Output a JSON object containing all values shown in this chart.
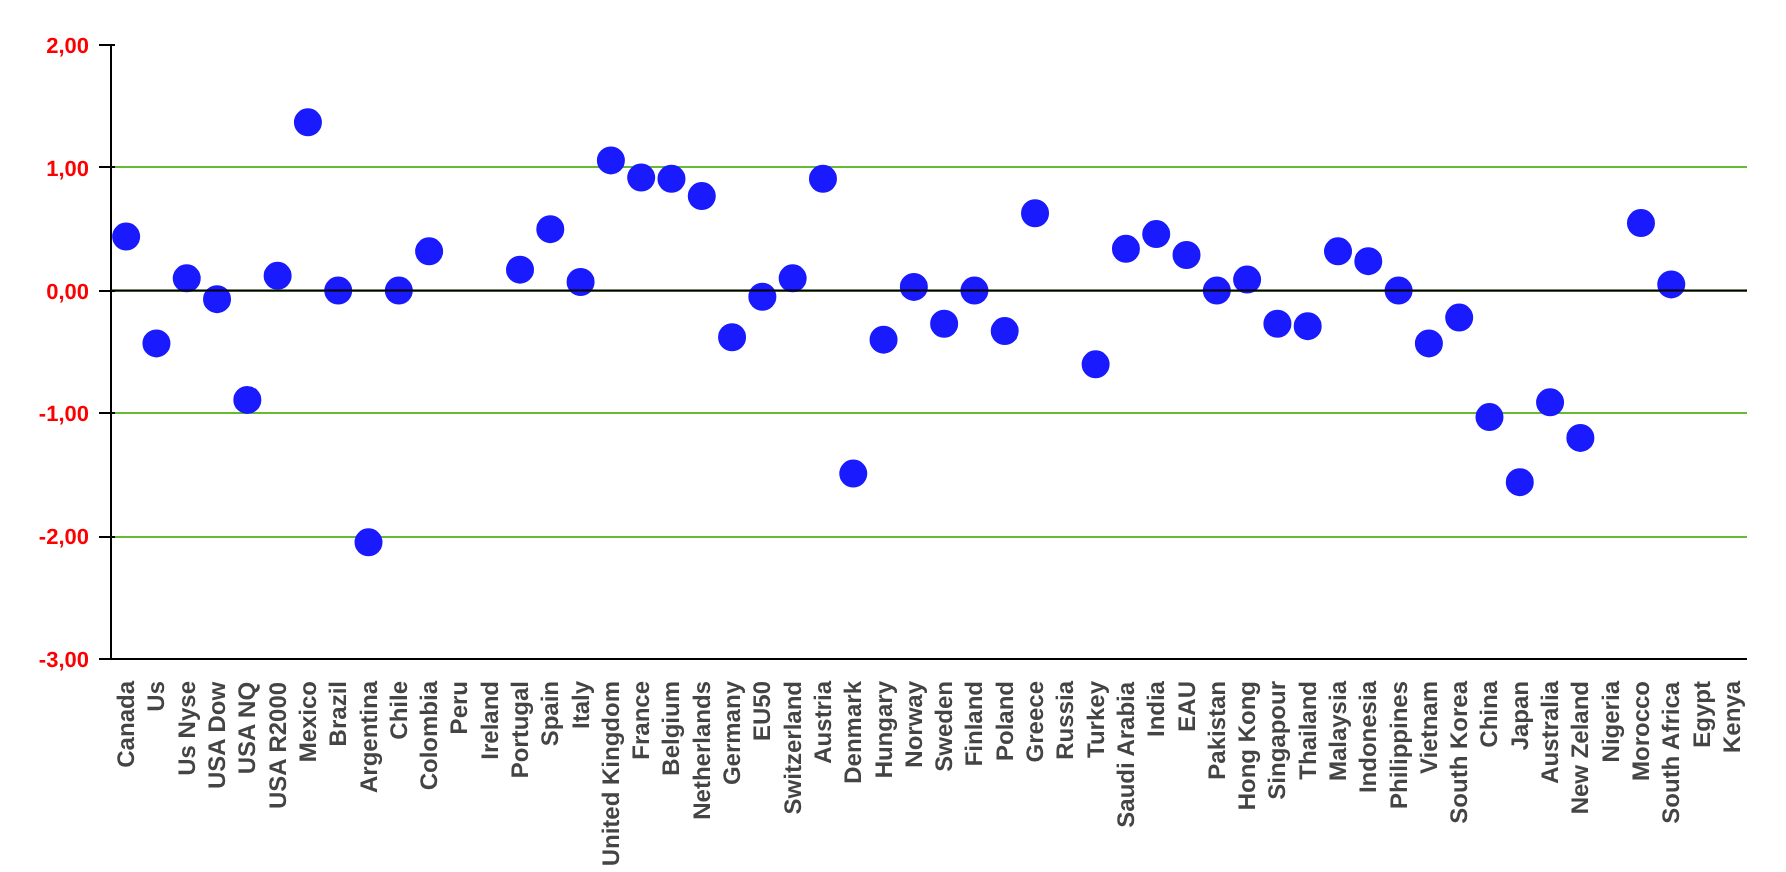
{
  "chart_data": {
    "type": "scatter",
    "marker": "circle",
    "grid": "y",
    "categories": [
      "Canada",
      "Us",
      "Us Nyse",
      "USA Dow",
      "USA NQ",
      "USA R2000",
      "Mexico",
      "Brazil",
      "Argentina",
      "Chile",
      "Colombia",
      "Peru",
      "Ireland",
      "Portugal",
      "Spain",
      "Italy",
      "United Kingdom",
      "France",
      "Belgium",
      "Netherlands",
      "Germany",
      "EU50",
      "Switzerland",
      "Austria",
      "Denmark",
      "Hungary",
      "Norway",
      "Sweden",
      "Finland",
      "Poland",
      "Greece",
      "Russia",
      "Turkey",
      "Saudi Arabia",
      "India",
      "EAU",
      "Pakistan",
      "Hong Kong",
      "Singapour",
      "Thailand",
      "Malaysia",
      "Indonesia",
      "Philippines",
      "Vietnam",
      "South Korea",
      "China",
      "Japan",
      "Australia",
      "New Zeland",
      "Nigeria",
      "Morocco",
      "South Africa",
      "Egypt",
      "Kenya"
    ],
    "series": [
      {
        "color": "#1a1aff",
        "values": [
          0.44,
          -0.43,
          0.1,
          -0.07,
          -0.89,
          0.12,
          1.37,
          0.0,
          -2.05,
          0.0,
          0.32,
          null,
          null,
          0.17,
          0.5,
          0.07,
          1.06,
          0.92,
          0.91,
          0.77,
          -0.38,
          -0.05,
          0.1,
          0.91,
          -1.49,
          -0.4,
          0.03,
          -0.27,
          0.0,
          -0.33,
          0.63,
          null,
          -0.6,
          0.34,
          0.46,
          0.29,
          0.0,
          0.09,
          -0.27,
          -0.29,
          0.32,
          0.24,
          0.0,
          -0.43,
          -0.22,
          -1.03,
          -1.56,
          -0.91,
          -1.2,
          null,
          0.55,
          0.05,
          null,
          null
        ]
      }
    ],
    "ylim": [
      -3,
      2
    ],
    "yticks": [
      {
        "value": -3,
        "label": "-3,00"
      },
      {
        "value": -2,
        "label": "-2,00"
      },
      {
        "value": -1,
        "label": "-1,00"
      },
      {
        "value": 0,
        "label": "0,00"
      },
      {
        "value": 1,
        "label": "1,00"
      },
      {
        "value": 2,
        "label": "2,00"
      }
    ],
    "ref_lines": [
      {
        "axis": "y",
        "value": 0,
        "color": "#000000"
      }
    ]
  }
}
